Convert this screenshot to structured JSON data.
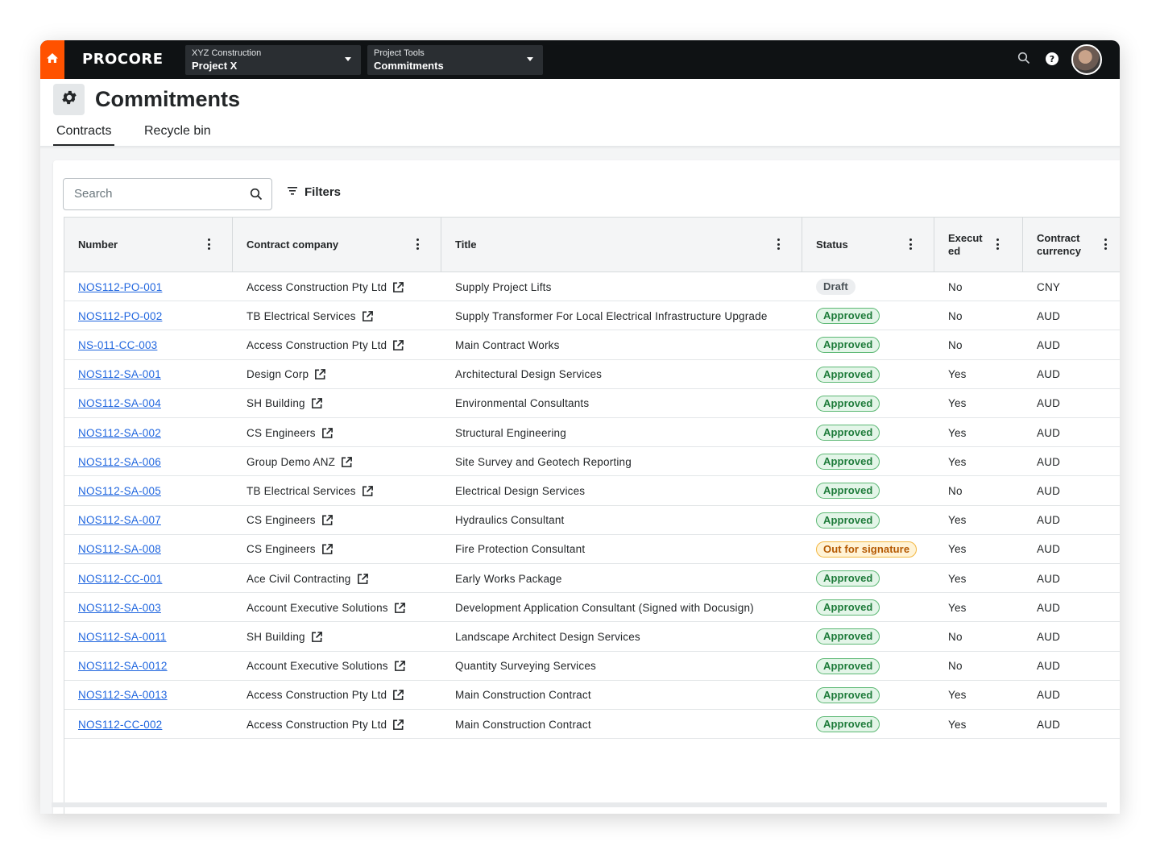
{
  "nav": {
    "logo": "PROCORE",
    "company": {
      "label": "XYZ Construction",
      "value": "Project X"
    },
    "tools": {
      "label": "Project Tools",
      "value": "Commitments"
    },
    "icons": [
      "home-icon",
      "search-icon",
      "help-icon",
      "avatar"
    ]
  },
  "page": {
    "title": "Commitments",
    "tabs": [
      {
        "label": "Contracts",
        "active": true
      },
      {
        "label": "Recycle bin",
        "active": false
      }
    ]
  },
  "toolbar": {
    "search_placeholder": "Search",
    "filters_label": "Filters"
  },
  "table": {
    "columns": [
      "Number",
      "Contract company",
      "Title",
      "Status",
      "Execut ed",
      "Contract currency"
    ],
    "rows": [
      {
        "number": "NOS112-PO-001",
        "company": "Access Construction Pty Ltd",
        "title": "Supply Project Lifts",
        "status": "Draft",
        "executed": "No",
        "currency": "CNY"
      },
      {
        "number": "NOS112-PO-002",
        "company": "TB Electrical Services",
        "title": "Supply Transformer For Local Electrical Infrastructure Upgrade",
        "status": "Approved",
        "executed": "No",
        "currency": "AUD"
      },
      {
        "number": "NS-011-CC-003",
        "company": "Access Construction Pty Ltd",
        "title": "Main Contract Works",
        "status": "Approved",
        "executed": "No",
        "currency": "AUD"
      },
      {
        "number": "NOS112-SA-001",
        "company": "Design Corp",
        "title": "Architectural Design Services",
        "status": "Approved",
        "executed": "Yes",
        "currency": "AUD"
      },
      {
        "number": "NOS112-SA-004",
        "company": "SH Building",
        "title": "Environmental Consultants",
        "status": "Approved",
        "executed": "Yes",
        "currency": "AUD"
      },
      {
        "number": "NOS112-SA-002",
        "company": "CS Engineers",
        "title": "Structural Engineering",
        "status": "Approved",
        "executed": "Yes",
        "currency": "AUD"
      },
      {
        "number": "NOS112-SA-006",
        "company": "Group Demo ANZ",
        "title": "Site Survey and Geotech Reporting",
        "status": "Approved",
        "executed": "Yes",
        "currency": "AUD"
      },
      {
        "number": "NOS112-SA-005",
        "company": "TB Electrical Services",
        "title": "Electrical Design Services",
        "status": "Approved",
        "executed": "No",
        "currency": "AUD"
      },
      {
        "number": "NOS112-SA-007",
        "company": "CS Engineers",
        "title": "Hydraulics Consultant",
        "status": "Approved",
        "executed": "Yes",
        "currency": "AUD"
      },
      {
        "number": "NOS112-SA-008",
        "company": "CS Engineers",
        "title": "Fire Protection Consultant",
        "status": "Out for signature",
        "executed": "Yes",
        "currency": "AUD"
      },
      {
        "number": "NOS112-CC-001",
        "company": "Ace Civil Contracting",
        "title": "Early Works Package",
        "status": "Approved",
        "executed": "Yes",
        "currency": "AUD"
      },
      {
        "number": "NOS112-SA-003",
        "company": "Account Executive Solutions",
        "title": "Development Application Consultant (Signed with Docusign)",
        "status": "Approved",
        "executed": "Yes",
        "currency": "AUD"
      },
      {
        "number": "NOS112-SA-0011",
        "company": "SH Building",
        "title": "Landscape Architect Design Services",
        "status": "Approved",
        "executed": "No",
        "currency": "AUD"
      },
      {
        "number": "NOS112-SA-0012",
        "company": "Account Executive Solutions",
        "title": "Quantity Surveying Services",
        "status": "Approved",
        "executed": "No",
        "currency": "AUD"
      },
      {
        "number": "NOS112-SA-0013",
        "company": "Access Construction Pty Ltd",
        "title": "Main Construction Contract",
        "status": "Approved",
        "executed": "Yes",
        "currency": "AUD"
      },
      {
        "number": "NOS112-CC-002",
        "company": "Access Construction Pty Ltd",
        "title": "Main Construction Contract",
        "status": "Approved",
        "executed": "Yes",
        "currency": "AUD"
      }
    ]
  },
  "colors": {
    "brand_orange": "#ff5200",
    "link_blue": "#2066df",
    "approved": {
      "fg": "#1e7b3a",
      "bg": "#e3f5e8",
      "border": "#5cb874"
    },
    "draft": {
      "fg": "#4a5257",
      "bg": "#eceef0",
      "border": "#eceef0"
    },
    "out_for_signature": {
      "fg": "#b45800",
      "bg": "#fff3d6",
      "border": "#f2b640"
    }
  }
}
